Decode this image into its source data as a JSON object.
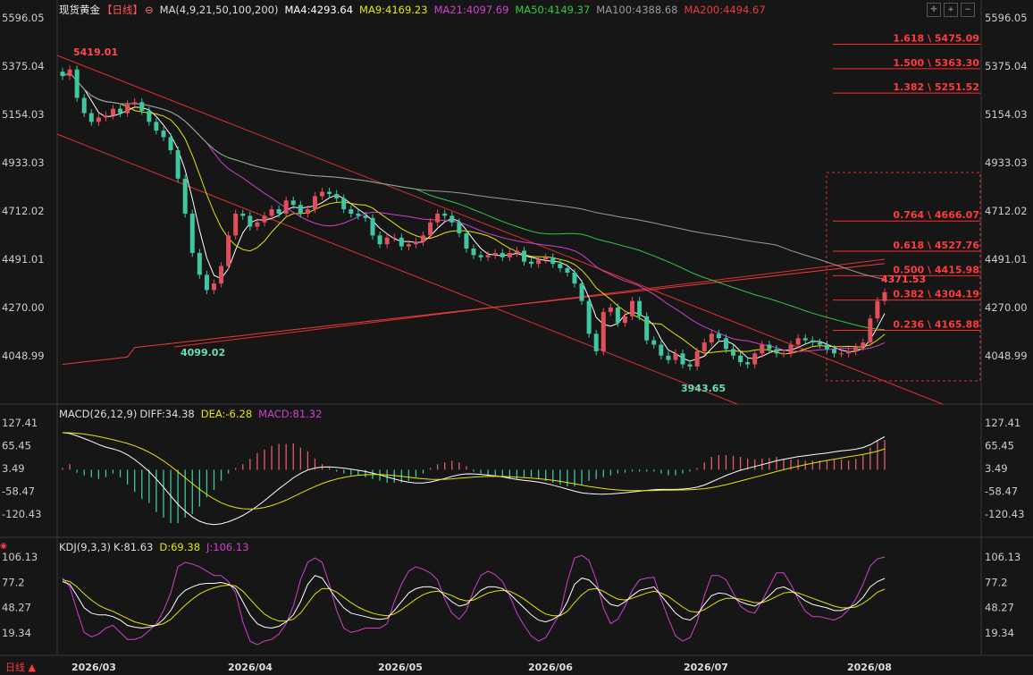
{
  "main": {
    "title": "现货黄金",
    "period": "【日线】",
    "ma_params": "MA(4,9,21,50,100,200)",
    "ma_values": [
      {
        "label": "MA4:4293.64",
        "color": "#ffffff"
      },
      {
        "label": "MA9:4169.23",
        "color": "#e6e600"
      },
      {
        "label": "MA21:4097.69",
        "color": "#d040d0"
      },
      {
        "label": "MA50:4149.37",
        "color": "#2ecc40"
      },
      {
        "label": "MA100:4388.68",
        "color": "#9a9a9a"
      },
      {
        "label": "MA200:4494.67",
        "color": "#ee3b3b"
      }
    ]
  },
  "macd": {
    "title": "MACD(26,12,9)",
    "diff": "DIFF:34.38",
    "dea": "DEA:-6.28",
    "macd": "MACD:81.32"
  },
  "kdj": {
    "title": "KDJ(9,3,3)",
    "k": "K:81.63",
    "d": "D:69.38",
    "j": "J:106.13"
  },
  "footer": {
    "period_button": "日线 ▲"
  },
  "colors": {
    "up": "#e0505a",
    "down": "#3fc7a2",
    "bg": "#161616",
    "grid": "#2a2a2a"
  },
  "chart_data": [
    {
      "type": "candlestick",
      "name": "price",
      "x_ticks": [
        "2026/03",
        "2026/04",
        "2026/05",
        "2026/06",
        "2026/07",
        "2026/08"
      ],
      "y_ticks": [
        5596.05,
        5375.04,
        5154.03,
        4933.03,
        4712.02,
        4491.01,
        4270.0,
        4048.99
      ],
      "ylim": [
        3900,
        5620
      ],
      "annotations": [
        "5419.01",
        "4099.02",
        "3943.65",
        "4371.53"
      ],
      "fibonacci": [
        {
          "ratio": "1.618",
          "value": 5475.09,
          "label": "1.618 \\ 5475.09"
        },
        {
          "ratio": "1.500",
          "value": 5363.3,
          "label": "1.500 \\ 5363.30"
        },
        {
          "ratio": "1.382",
          "value": 5251.52,
          "label": "1.382 \\ 5251.52"
        },
        {
          "ratio": "0.764",
          "value": 4666.07,
          "label": "0.764 \\ 4666.07"
        },
        {
          "ratio": "0.618",
          "value": 4527.76,
          "label": "0.618 \\ 4527.76"
        },
        {
          "ratio": "0.500",
          "value": 4415.98,
          "label": "0.500 \\ 4415.98"
        },
        {
          "ratio": "0.382",
          "value": 4304.19,
          "label": "0.382 \\ 4304.19"
        },
        {
          "ratio": "0.236",
          "value": 4165.88,
          "label": "0.236 \\ 4165.88"
        }
      ],
      "close": [
        5330,
        5360,
        5230,
        5160,
        5120,
        5140,
        5150,
        5180,
        5160,
        5200,
        5210,
        5170,
        5120,
        5080,
        5050,
        4990,
        4860,
        4700,
        4520,
        4420,
        4350,
        4380,
        4460,
        4600,
        4700,
        4690,
        4640,
        4660,
        4690,
        4720,
        4700,
        4760,
        4740,
        4700,
        4720,
        4780,
        4800,
        4790,
        4770,
        4720,
        4700,
        4690,
        4680,
        4600,
        4560,
        4590,
        4590,
        4550,
        4560,
        4570,
        4600,
        4660,
        4700,
        4690,
        4660,
        4610,
        4540,
        4510,
        4500,
        4510,
        4520,
        4500,
        4520,
        4530,
        4480,
        4470,
        4490,
        4500,
        4470,
        4450,
        4430,
        4380,
        4300,
        4150,
        4070,
        4250,
        4270,
        4200,
        4230,
        4300,
        4230,
        4120,
        4100,
        4050,
        4030,
        4060,
        4010,
        4000,
        4070,
        4110,
        4150,
        4130,
        4080,
        4050,
        4020,
        4010,
        4060,
        4100,
        4080,
        4060,
        4060,
        4100,
        4130,
        4120,
        4110,
        4100,
        4080,
        4060,
        4060,
        4070,
        4090,
        4110,
        4220,
        4300,
        4340
      ]
    },
    {
      "type": "bar+line",
      "name": "MACD",
      "y_ticks": [
        127.41,
        65.45,
        3.49,
        -58.47,
        -120.43
      ],
      "ylim": [
        -150,
        145
      ],
      "macd_hist": [
        5,
        15,
        -8,
        -15,
        -20,
        -25,
        -20,
        -10,
        -20,
        -40,
        -60,
        -80,
        -90,
        -115,
        -130,
        -145,
        -145,
        -130,
        -120,
        -100,
        -75,
        -55,
        -30,
        -10,
        5,
        15,
        30,
        45,
        55,
        65,
        70,
        70,
        72,
        60,
        50,
        30,
        15,
        5,
        -5,
        -10,
        -15,
        -15,
        -20,
        -25,
        -30,
        -35,
        -35,
        -35,
        -30,
        -20,
        -10,
        5,
        15,
        20,
        25,
        20,
        10,
        -5,
        -10,
        -15,
        -15,
        -20,
        -25,
        -25,
        -20,
        -20,
        -25,
        -30,
        -35,
        -40,
        -45,
        -45,
        -40,
        -30,
        -25,
        -20,
        -15,
        -10,
        -8,
        -5,
        -5,
        -5,
        -5,
        -10,
        -15,
        -15,
        -10,
        -5,
        5,
        20,
        35,
        40,
        40,
        38,
        35,
        30,
        28,
        30,
        32,
        35,
        30,
        28,
        28,
        25,
        25,
        25,
        25,
        30,
        28,
        25,
        30,
        40,
        60,
        80,
        81
      ]
    },
    {
      "type": "line",
      "name": "KDJ",
      "y_ticks": [
        106.13,
        77.2,
        48.27,
        19.34
      ],
      "ylim": [
        5,
        115
      ],
      "k": [
        78,
        75,
        62,
        48,
        42,
        40,
        40,
        38,
        34,
        28,
        26,
        25,
        26,
        28,
        35,
        45,
        60,
        68,
        72,
        75,
        76,
        76,
        77,
        75,
        70,
        55,
        40,
        30,
        26,
        25,
        27,
        32,
        40,
        55,
        75,
        85,
        82,
        70,
        58,
        48,
        42,
        40,
        38,
        36,
        35,
        36,
        45,
        55,
        65,
        70,
        72,
        72,
        70,
        62,
        55,
        50,
        52,
        60,
        68,
        72,
        72,
        70,
        64,
        56,
        48,
        40,
        34,
        32,
        35,
        40,
        55,
        75,
        82,
        80,
        72,
        60,
        52,
        50,
        55,
        62,
        68,
        70,
        72,
        62,
        52,
        42,
        36,
        34,
        40,
        52,
        62,
        65,
        64,
        60,
        55,
        52,
        50,
        55,
        62,
        70,
        72,
        68,
        62,
        56,
        52,
        50,
        48,
        45,
        45,
        48,
        52,
        60,
        72,
        78,
        81.63
      ],
      "d": [
        80,
        78,
        72,
        64,
        57,
        51,
        47,
        44,
        40,
        36,
        32,
        30,
        28,
        28,
        30,
        35,
        43,
        51,
        58,
        64,
        68,
        71,
        73,
        74,
        73,
        67,
        58,
        49,
        41,
        36,
        33,
        33,
        35,
        42,
        53,
        64,
        70,
        70,
        66,
        60,
        54,
        49,
        45,
        42,
        40,
        39,
        41,
        46,
        52,
        58,
        63,
        66,
        67,
        65,
        62,
        58,
        56,
        57,
        61,
        65,
        67,
        68,
        67,
        63,
        58,
        52,
        46,
        41,
        39,
        39,
        44,
        54,
        63,
        69,
        70,
        67,
        62,
        58,
        57,
        59,
        62,
        65,
        67,
        65,
        61,
        55,
        49,
        44,
        43,
        46,
        51,
        56,
        59,
        59,
        58,
        56,
        54,
        54,
        57,
        61,
        65,
        66,
        65,
        62,
        59,
        56,
        53,
        50,
        48,
        48,
        49,
        53,
        59,
        66,
        69.38
      ],
      "j": [
        82,
        72,
        45,
        20,
        15,
        18,
        25,
        28,
        20,
        12,
        12,
        15,
        22,
        30,
        45,
        65,
        95,
        100,
        98,
        95,
        90,
        85,
        85,
        78,
        65,
        32,
        10,
        6,
        10,
        12,
        18,
        30,
        50,
        80,
        100,
        105,
        100,
        75,
        45,
        25,
        20,
        22,
        25,
        25,
        25,
        30,
        55,
        75,
        90,
        95,
        92,
        88,
        80,
        58,
        42,
        35,
        45,
        68,
        85,
        90,
        86,
        78,
        62,
        42,
        28,
        16,
        10,
        14,
        28,
        42,
        78,
        105,
        108,
        102,
        80,
        48,
        30,
        35,
        50,
        68,
        80,
        82,
        83,
        58,
        36,
        16,
        10,
        14,
        32,
        62,
        85,
        85,
        80,
        65,
        50,
        44,
        42,
        56,
        72,
        88,
        88,
        75,
        58,
        44,
        38,
        38,
        36,
        34,
        38,
        46,
        58,
        75,
        96,
        104,
        106.13
      ]
    }
  ]
}
